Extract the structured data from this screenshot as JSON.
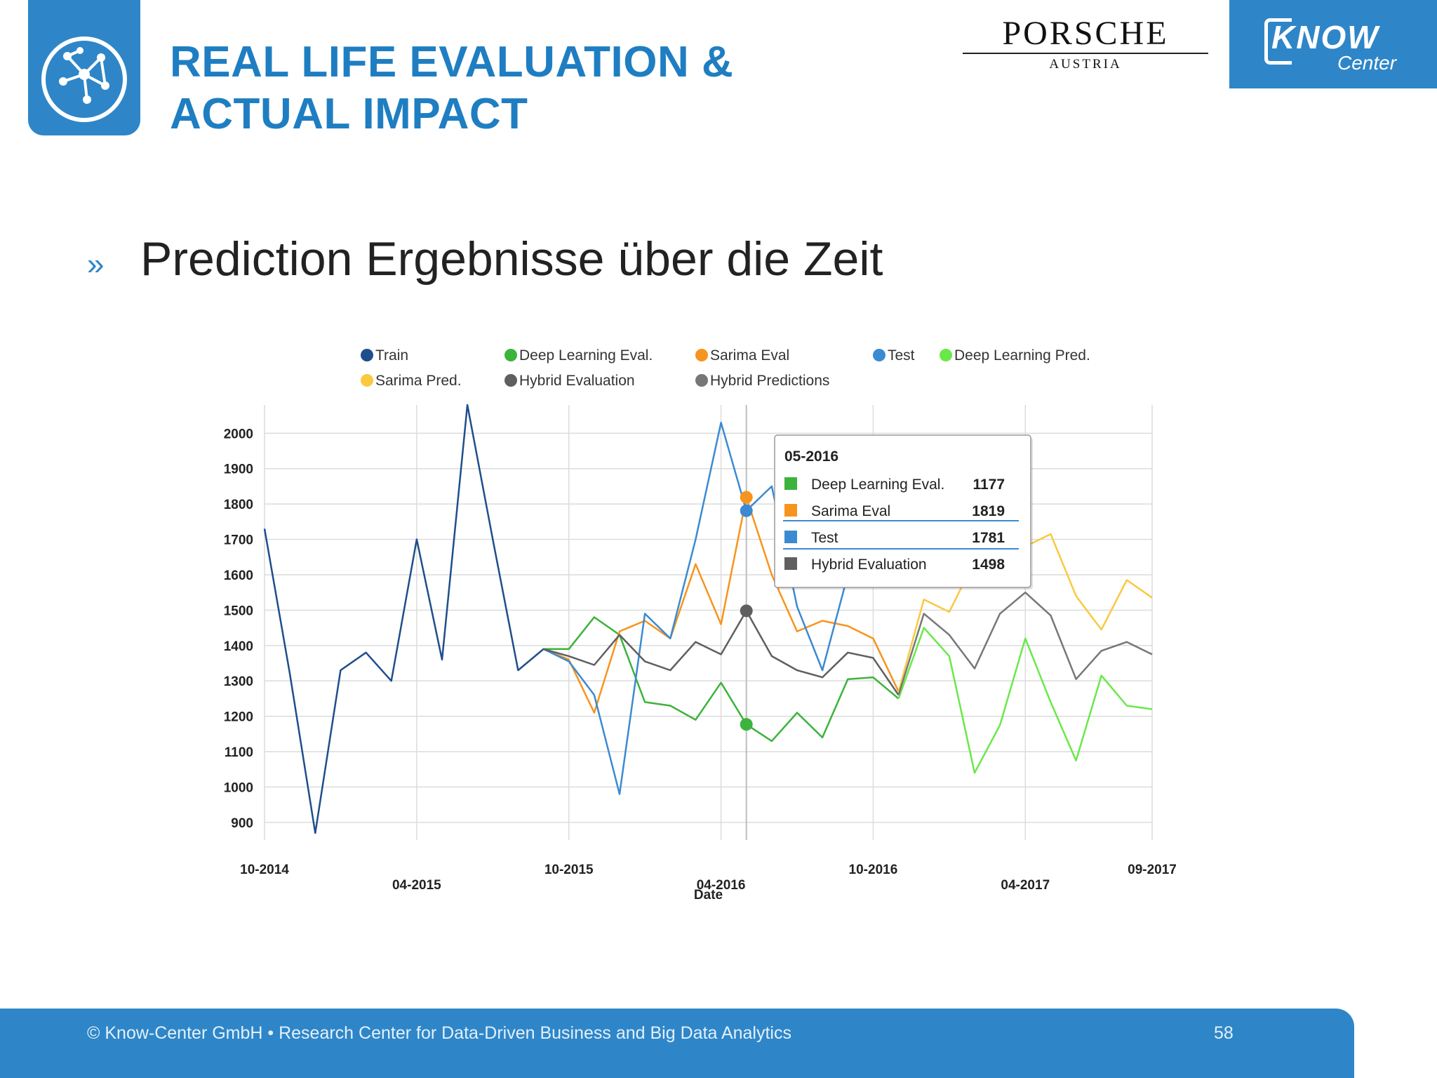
{
  "header": {
    "title_line1": "REAL LIFE EVALUATION &",
    "title_line2": "ACTUAL IMPACT",
    "porsche_name": "PORSCHE",
    "porsche_sub": "AUSTRIA",
    "know_word": "KNOW",
    "know_center": "Center",
    "logo_icon": "network-icon"
  },
  "body": {
    "bullet": "»",
    "headline": "Prediction Ergebnisse über die Zeit"
  },
  "footer": {
    "text": "© Know-Center GmbH • Research Center for Data-Driven Business and Big Data Analytics",
    "page": "58"
  },
  "chart_data": {
    "type": "line",
    "xlabel": "Date",
    "ylabel": "",
    "ylim": [
      850,
      2080
    ],
    "y_ticks": [
      900,
      1000,
      1100,
      1200,
      1300,
      1400,
      1500,
      1600,
      1700,
      1800,
      1900,
      2000
    ],
    "x_tick_labels": [
      "10-2014",
      "04-2015",
      "10-2015",
      "04-2016",
      "10-2016",
      "04-2017",
      "09-2017"
    ],
    "x_tick_months": [
      0,
      6,
      12,
      18,
      24,
      30,
      35
    ],
    "grid": true,
    "legend_position": "top",
    "series": [
      {
        "name": "Train",
        "color": "#1f4e8c",
        "start": 0,
        "values": [
          1730,
          1320,
          870,
          1330,
          1380,
          1300,
          1700,
          1360,
          2080,
          1700,
          1330,
          1390,
          1360
        ]
      },
      {
        "name": "Deep Learning Eval.",
        "color": "#3cb33c",
        "start": 11,
        "values": [
          1390,
          1390,
          1480,
          1430,
          1240,
          1230,
          1190,
          1295,
          1177,
          1130,
          1210,
          1140,
          1305,
          1310,
          1250
        ]
      },
      {
        "name": "Sarima Eval",
        "color": "#f7941d",
        "start": 11,
        "values": [
          1390,
          1360,
          1210,
          1440,
          1470,
          1420,
          1630,
          1460,
          1819,
          1600,
          1440,
          1470,
          1455,
          1420,
          1270
        ]
      },
      {
        "name": "Test",
        "color": "#3b8ad2",
        "start": 11,
        "values": [
          1390,
          1355,
          1260,
          980,
          1490,
          1420,
          1700,
          2030,
          1781,
          1850,
          1510,
          1330,
          1600
        ]
      },
      {
        "name": "Deep Learning Pred.",
        "color": "#6ae84a",
        "start": 25,
        "values": [
          1250,
          1450,
          1370,
          1040,
          1175,
          1420,
          1240,
          1075,
          1315,
          1230,
          1220
        ]
      },
      {
        "name": "Sarima Pred.",
        "color": "#f9c940",
        "start": 25,
        "values": [
          1270,
          1530,
          1495,
          1640,
          1740,
          1680,
          1715,
          1540,
          1445,
          1585,
          1535
        ]
      },
      {
        "name": "Hybrid Evaluation",
        "color": "#5f5f5f",
        "start": 11,
        "values": [
          1390,
          1370,
          1345,
          1430,
          1355,
          1330,
          1410,
          1375,
          1498,
          1370,
          1330,
          1310,
          1380,
          1365,
          1260
        ]
      },
      {
        "name": "Hybrid Predictions",
        "color": "#777777",
        "start": 25,
        "values": [
          1260,
          1490,
          1430,
          1335,
          1490,
          1550,
          1485,
          1305,
          1385,
          1410,
          1375
        ]
      }
    ],
    "tooltip": {
      "title": "05-2016",
      "month_index": 19,
      "rows": [
        {
          "label": "Deep Learning Eval.",
          "value": "1177",
          "color": "#3cb33c"
        },
        {
          "label": "Sarima Eval",
          "value": "1819",
          "color": "#f7941d"
        },
        {
          "label": "Test",
          "value": "1781",
          "color": "#3b8ad2"
        },
        {
          "label": "Hybrid Evaluation",
          "value": "1498",
          "color": "#5f5f5f"
        }
      ]
    }
  }
}
